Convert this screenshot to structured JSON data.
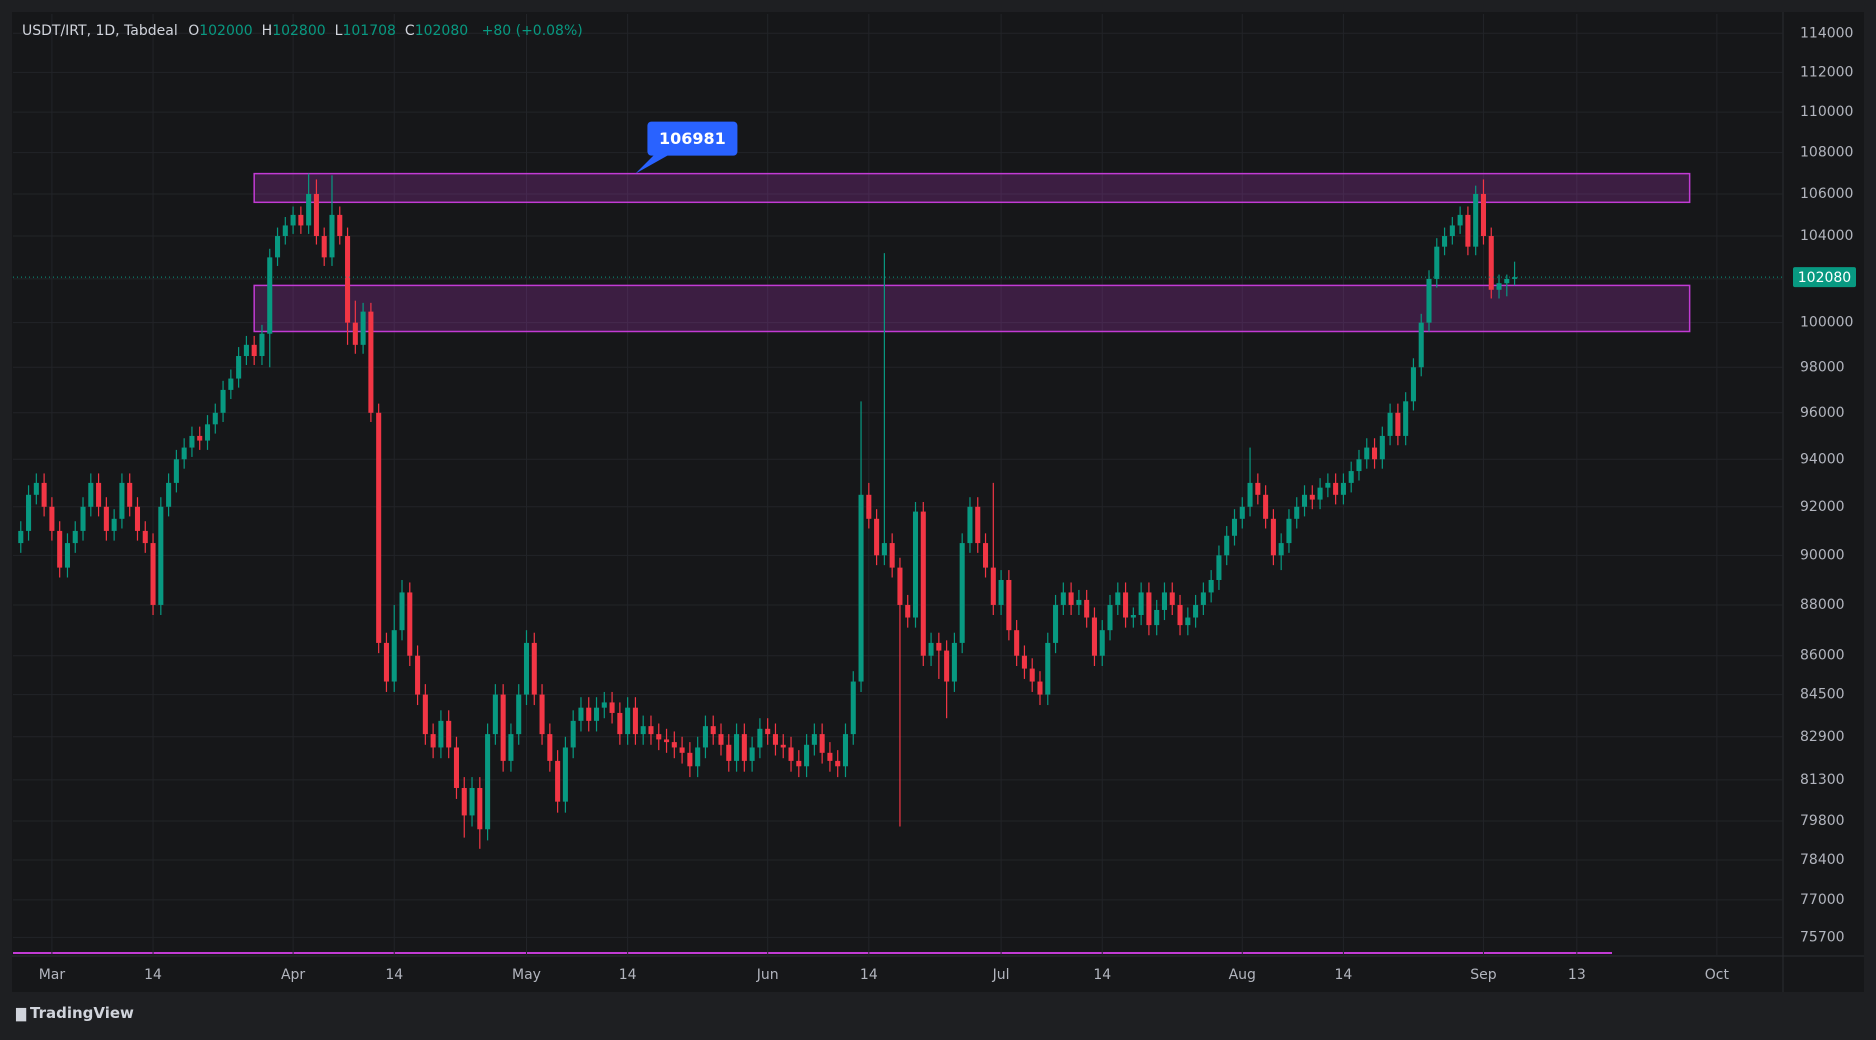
{
  "chart_data": {
    "type": "candlestick",
    "title": "USDT/IRT, 1D, Tabdeal",
    "ohlc_labels": [
      "O",
      "H",
      "L",
      "C"
    ],
    "change_label": "+80 (+0.08%)",
    "brand": "TradingView",
    "log_scale": true,
    "grid": true,
    "up_color": "#089981",
    "down_color": "#f23645",
    "xlim": [
      -5,
      222.5
    ],
    "ylim": [
      75100,
      115000
    ],
    "xticks": [
      {
        "value": 0,
        "label": "Mar"
      },
      {
        "value": 13,
        "label": "14"
      },
      {
        "value": 31,
        "label": "Apr"
      },
      {
        "value": 44,
        "label": "14"
      },
      {
        "value": 61,
        "label": "May"
      },
      {
        "value": 74,
        "label": "14"
      },
      {
        "value": 92,
        "label": "Jun"
      },
      {
        "value": 105,
        "label": "14"
      },
      {
        "value": 122,
        "label": "Jul"
      },
      {
        "value": 135,
        "label": "14"
      },
      {
        "value": 153,
        "label": "Aug"
      },
      {
        "value": 166,
        "label": "14"
      },
      {
        "value": 184,
        "label": "Sep"
      },
      {
        "value": 196,
        "label": "13"
      },
      {
        "value": 214,
        "label": "Oct"
      }
    ],
    "yticks": [
      114000,
      112000,
      110000,
      108000,
      106000,
      104000,
      102000,
      100000,
      98000,
      96000,
      94000,
      92000,
      90000,
      88000,
      86000,
      84500,
      82900,
      81300,
      79800,
      78400,
      77000,
      75700
    ],
    "zones": [
      {
        "low": 105600,
        "high": 106981,
        "x0": 26,
        "x1": 210.5,
        "color": "#c23bd4"
      },
      {
        "low": 99600,
        "high": 101700,
        "x0": 26,
        "x1": 210.5,
        "color": "#c23bd4"
      }
    ],
    "annotation": {
      "value": 106981,
      "x": 75,
      "color": "#2962ff"
    },
    "x": [
      -4,
      -3,
      -2,
      -1,
      0,
      1,
      2,
      3,
      4,
      5,
      6,
      7,
      8,
      9,
      10,
      11,
      12,
      13,
      14,
      15,
      16,
      17,
      18,
      19,
      20,
      21,
      22,
      23,
      24,
      25,
      26,
      27,
      28,
      29,
      30,
      31,
      32,
      33,
      34,
      35,
      36,
      37,
      38,
      39,
      40,
      41,
      42,
      43,
      44,
      45,
      46,
      47,
      48,
      49,
      50,
      51,
      52,
      53,
      54,
      55,
      56,
      57,
      58,
      59,
      60,
      61,
      62,
      63,
      64,
      65,
      66,
      67,
      68,
      69,
      70,
      71,
      72,
      73,
      74,
      75,
      76,
      77,
      78,
      79,
      80,
      81,
      82,
      83,
      84,
      85,
      86,
      87,
      88,
      89,
      90,
      91,
      92,
      93,
      94,
      95,
      96,
      97,
      98,
      99,
      100,
      101,
      102,
      103,
      104,
      105,
      106,
      107,
      108,
      109,
      110,
      111,
      112,
      113,
      114,
      115,
      116,
      117,
      118,
      119,
      120,
      121,
      122,
      123,
      124,
      125,
      126,
      127,
      128,
      129,
      130,
      131,
      132,
      133,
      134,
      135,
      136,
      137,
      138,
      139,
      140,
      141,
      142,
      143,
      144,
      145,
      146,
      147,
      148,
      149,
      150,
      151,
      152,
      153,
      154,
      155,
      156,
      157,
      158,
      159,
      160,
      161,
      162,
      163,
      164,
      165,
      166,
      167,
      168,
      169,
      170,
      171,
      172,
      173,
      174,
      175,
      176,
      177,
      178,
      179,
      180,
      181,
      182,
      183,
      184,
      185,
      186,
      187,
      188
    ],
    "ohlc": [
      [
        90500,
        91400,
        90100,
        91000
      ],
      [
        91000,
        92900,
        90600,
        92500
      ],
      [
        92500,
        93400,
        92100,
        93000
      ],
      [
        93000,
        93400,
        91600,
        92000
      ],
      [
        92000,
        92400,
        90600,
        91000
      ],
      [
        91000,
        91400,
        89100,
        89500
      ],
      [
        89500,
        90900,
        89100,
        90500
      ],
      [
        90500,
        91400,
        90100,
        91000
      ],
      [
        91000,
        92400,
        90600,
        92000
      ],
      [
        92000,
        93400,
        91600,
        93000
      ],
      [
        93000,
        93400,
        91600,
        92000
      ],
      [
        92000,
        92400,
        90600,
        91000
      ],
      [
        91000,
        91900,
        90600,
        91500
      ],
      [
        91500,
        93400,
        91100,
        93000
      ],
      [
        93000,
        93400,
        91600,
        92000
      ],
      [
        92000,
        92400,
        90600,
        91000
      ],
      [
        91000,
        91400,
        90100,
        90500
      ],
      [
        90500,
        90900,
        87600,
        88000
      ],
      [
        88000,
        92400,
        87600,
        92000
      ],
      [
        92000,
        93400,
        91600,
        93000
      ],
      [
        93000,
        94400,
        92600,
        94000
      ],
      [
        94000,
        94900,
        93600,
        94500
      ],
      [
        94500,
        95400,
        94100,
        95000
      ],
      [
        95000,
        95400,
        94400,
        94800
      ],
      [
        94800,
        95900,
        94400,
        95500
      ],
      [
        95500,
        96400,
        95100,
        96000
      ],
      [
        96000,
        97400,
        95600,
        97000
      ],
      [
        97000,
        97900,
        96600,
        97500
      ],
      [
        97500,
        98900,
        97100,
        98500
      ],
      [
        98500,
        99400,
        98100,
        99000
      ],
      [
        99000,
        99400,
        98100,
        98500
      ],
      [
        98500,
        99900,
        98100,
        99500
      ],
      [
        99500,
        103400,
        98000,
        103000
      ],
      [
        103000,
        104400,
        102600,
        104000
      ],
      [
        104000,
        104900,
        103600,
        104500
      ],
      [
        104500,
        105400,
        104100,
        105000
      ],
      [
        105000,
        105400,
        104100,
        104500
      ],
      [
        104500,
        106981,
        104100,
        106000
      ],
      [
        106000,
        106700,
        103600,
        104000
      ],
      [
        104000,
        104400,
        102600,
        103000
      ],
      [
        103000,
        106900,
        102600,
        105000
      ],
      [
        105000,
        105400,
        103600,
        104000
      ],
      [
        104000,
        104400,
        99000,
        100000
      ],
      [
        100000,
        101000,
        98600,
        99000
      ],
      [
        99000,
        100900,
        98600,
        100500
      ],
      [
        100500,
        100900,
        95600,
        96000
      ],
      [
        96000,
        96400,
        86100,
        86500
      ],
      [
        86500,
        86900,
        84600,
        85000
      ],
      [
        85000,
        88000,
        84600,
        87000
      ],
      [
        87000,
        89000,
        86600,
        88500
      ],
      [
        88500,
        88900,
        85600,
        86000
      ],
      [
        86000,
        86400,
        84100,
        84500
      ],
      [
        84500,
        84900,
        82600,
        83000
      ],
      [
        83000,
        83400,
        82100,
        82500
      ],
      [
        82500,
        83900,
        82100,
        83500
      ],
      [
        83500,
        83900,
        82100,
        82500
      ],
      [
        82500,
        82900,
        80600,
        81000
      ],
      [
        81000,
        81400,
        79200,
        80000
      ],
      [
        80000,
        81400,
        79600,
        81000
      ],
      [
        81000,
        81400,
        78800,
        79500
      ],
      [
        79500,
        83400,
        79100,
        83000
      ],
      [
        83000,
        84900,
        82600,
        84500
      ],
      [
        84500,
        84900,
        81600,
        82000
      ],
      [
        82000,
        83400,
        81600,
        83000
      ],
      [
        83000,
        84900,
        82600,
        84500
      ],
      [
        84500,
        87000,
        84100,
        86500
      ],
      [
        86500,
        86900,
        84100,
        84500
      ],
      [
        84500,
        84900,
        82600,
        83000
      ],
      [
        83000,
        83400,
        81600,
        82000
      ],
      [
        82000,
        82400,
        80100,
        80500
      ],
      [
        80500,
        82900,
        80100,
        82500
      ],
      [
        82500,
        83900,
        82100,
        83500
      ],
      [
        83500,
        84400,
        83100,
        84000
      ],
      [
        84000,
        84400,
        83100,
        83500
      ],
      [
        83500,
        84400,
        83100,
        84000
      ],
      [
        84000,
        84600,
        83600,
        84200
      ],
      [
        84200,
        84600,
        83400,
        83800
      ],
      [
        83800,
        84200,
        82600,
        83000
      ],
      [
        83000,
        84400,
        82600,
        84000
      ],
      [
        84000,
        84400,
        82600,
        83000
      ],
      [
        83000,
        83700,
        82600,
        83300
      ],
      [
        83300,
        83700,
        82600,
        83000
      ],
      [
        83000,
        83400,
        82400,
        82800
      ],
      [
        82800,
        83200,
        82300,
        82700
      ],
      [
        82700,
        83100,
        82100,
        82500
      ],
      [
        82500,
        82900,
        81900,
        82300
      ],
      [
        82300,
        82700,
        81400,
        81800
      ],
      [
        81800,
        82900,
        81400,
        82500
      ],
      [
        82500,
        83700,
        82100,
        83300
      ],
      [
        83300,
        83700,
        82600,
        83000
      ],
      [
        83000,
        83400,
        82200,
        82600
      ],
      [
        82600,
        83000,
        81600,
        82000
      ],
      [
        82000,
        83400,
        81600,
        83000
      ],
      [
        83000,
        83400,
        81600,
        82000
      ],
      [
        82000,
        82900,
        81600,
        82500
      ],
      [
        82500,
        83600,
        82100,
        83200
      ],
      [
        83200,
        83600,
        82600,
        83000
      ],
      [
        83000,
        83400,
        82200,
        82600
      ],
      [
        82600,
        83000,
        82100,
        82500
      ],
      [
        82500,
        82900,
        81600,
        82000
      ],
      [
        82000,
        82400,
        81400,
        81800
      ],
      [
        81800,
        83000,
        81400,
        82600
      ],
      [
        82600,
        83400,
        82200,
        83000
      ],
      [
        83000,
        83400,
        81900,
        82300
      ],
      [
        82300,
        82700,
        81600,
        82000
      ],
      [
        82000,
        82400,
        81400,
        81800
      ],
      [
        81800,
        83400,
        81400,
        83000
      ],
      [
        83000,
        85400,
        82600,
        85000
      ],
      [
        85000,
        96500,
        84600,
        92500
      ],
      [
        92500,
        93000,
        91100,
        91500
      ],
      [
        91500,
        91900,
        89600,
        90000
      ],
      [
        90000,
        103200,
        89600,
        90500
      ],
      [
        90500,
        90900,
        89100,
        89500
      ],
      [
        89500,
        89900,
        79600,
        88000
      ],
      [
        88000,
        88400,
        87100,
        87500
      ],
      [
        87500,
        92200,
        87100,
        91800
      ],
      [
        91800,
        92200,
        85600,
        86000
      ],
      [
        86000,
        86900,
        85600,
        86500
      ],
      [
        86500,
        86900,
        85100,
        86200
      ],
      [
        86200,
        86600,
        83600,
        85000
      ],
      [
        85000,
        86900,
        84600,
        86500
      ],
      [
        86500,
        90900,
        86100,
        90500
      ],
      [
        90500,
        92400,
        90100,
        92000
      ],
      [
        92000,
        92400,
        90100,
        90500
      ],
      [
        90500,
        90900,
        89100,
        89500
      ],
      [
        89500,
        93000,
        87600,
        88000
      ],
      [
        88000,
        89400,
        87600,
        89000
      ],
      [
        89000,
        89400,
        86600,
        87000
      ],
      [
        87000,
        87400,
        85600,
        86000
      ],
      [
        86000,
        86400,
        85100,
        85500
      ],
      [
        85500,
        85900,
        84600,
        85000
      ],
      [
        85000,
        85400,
        84100,
        84500
      ],
      [
        84500,
        86900,
        84100,
        86500
      ],
      [
        86500,
        88400,
        86100,
        88000
      ],
      [
        88000,
        88900,
        87600,
        88500
      ],
      [
        88500,
        88900,
        87600,
        88000
      ],
      [
        88000,
        88600,
        87600,
        88200
      ],
      [
        88200,
        88600,
        87100,
        87500
      ],
      [
        87500,
        87900,
        85600,
        86000
      ],
      [
        86000,
        87400,
        85600,
        87000
      ],
      [
        87000,
        88400,
        86600,
        88000
      ],
      [
        88000,
        88900,
        87600,
        88500
      ],
      [
        88500,
        88900,
        87100,
        87500
      ],
      [
        87500,
        87900,
        87100,
        87600
      ],
      [
        87600,
        88900,
        87200,
        88500
      ],
      [
        88500,
        88900,
        86800,
        87200
      ],
      [
        87200,
        88200,
        86800,
        87800
      ],
      [
        87800,
        88900,
        87400,
        88500
      ],
      [
        88500,
        88900,
        87600,
        88000
      ],
      [
        88000,
        88400,
        86800,
        87200
      ],
      [
        87200,
        87900,
        86800,
        87500
      ],
      [
        87500,
        88400,
        87100,
        88000
      ],
      [
        88000,
        88900,
        87600,
        88500
      ],
      [
        88500,
        89400,
        88100,
        89000
      ],
      [
        89000,
        90400,
        88600,
        90000
      ],
      [
        90000,
        91200,
        89600,
        90800
      ],
      [
        90800,
        91900,
        90400,
        91500
      ],
      [
        91500,
        92400,
        91100,
        92000
      ],
      [
        92000,
        94500,
        91600,
        93000
      ],
      [
        93000,
        93400,
        92100,
        92500
      ],
      [
        92500,
        92900,
        91100,
        91500
      ],
      [
        91500,
        91900,
        89600,
        90000
      ],
      [
        90000,
        90900,
        89400,
        90500
      ],
      [
        90500,
        91900,
        90100,
        91500
      ],
      [
        91500,
        92400,
        91100,
        92000
      ],
      [
        92000,
        92900,
        91600,
        92500
      ],
      [
        92500,
        92900,
        91900,
        92300
      ],
      [
        92300,
        93200,
        91900,
        92800
      ],
      [
        92800,
        93400,
        92400,
        93000
      ],
      [
        93000,
        93400,
        92100,
        92500
      ],
      [
        92500,
        93400,
        92100,
        93000
      ],
      [
        93000,
        93900,
        92600,
        93500
      ],
      [
        93500,
        94400,
        93100,
        94000
      ],
      [
        94000,
        94900,
        93600,
        94500
      ],
      [
        94500,
        94900,
        93600,
        94000
      ],
      [
        94000,
        95400,
        93600,
        95000
      ],
      [
        95000,
        96400,
        94600,
        96000
      ],
      [
        96000,
        96400,
        94600,
        95000
      ],
      [
        95000,
        96900,
        94600,
        96500
      ],
      [
        96500,
        98400,
        96100,
        98000
      ],
      [
        98000,
        100400,
        97600,
        100000
      ],
      [
        100000,
        102400,
        99600,
        102000
      ],
      [
        102000,
        103900,
        101600,
        103500
      ],
      [
        103500,
        104400,
        103100,
        104000
      ],
      [
        104000,
        104900,
        103600,
        104500
      ],
      [
        104500,
        105400,
        104100,
        105000
      ],
      [
        105000,
        105400,
        103100,
        103500
      ],
      [
        103500,
        106400,
        103100,
        106000
      ],
      [
        106000,
        106700,
        103600,
        104000
      ],
      [
        104000,
        104400,
        101100,
        101500
      ],
      [
        101500,
        102200,
        101100,
        101800
      ],
      [
        101800,
        102200,
        101200,
        102000
      ],
      [
        102000,
        102800,
        101708,
        102080
      ]
    ]
  }
}
